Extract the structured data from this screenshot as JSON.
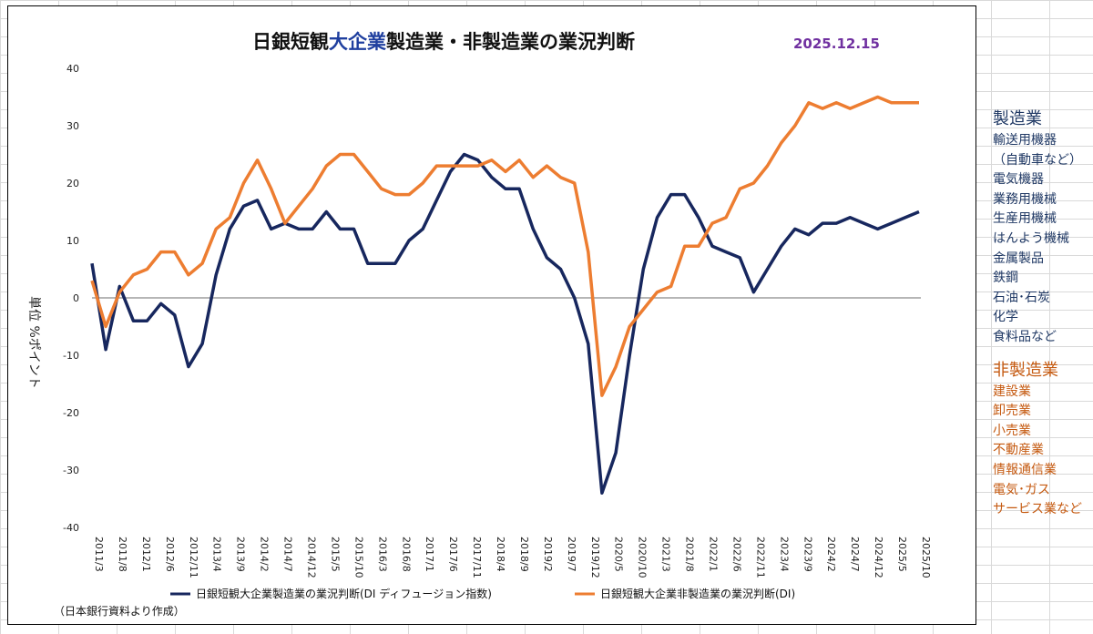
{
  "title_parts": [
    "日銀短観",
    "大企業",
    "製造業・非製造業の業況判断"
  ],
  "date": "2025.12.15",
  "y_axis_label": "単位 %ポイント",
  "source_note": "（日本銀行資料より作成）",
  "side_notes": {
    "manufacturing": {
      "heading": "製造業",
      "items": [
        "輸送用機器",
        "（自動車など）",
        "電気機器",
        "業務用機械",
        "生産用機械",
        "はんよう機械",
        "金属製品",
        "鉄鋼",
        "石油･石炭",
        "化学",
        "食料品など"
      ]
    },
    "non_manufacturing": {
      "heading": "非製造業",
      "items": [
        "建設業",
        "卸売業",
        "小売業",
        "不動産業",
        "情報通信業",
        "電気･ガス",
        "サービス業など"
      ]
    }
  },
  "colors": {
    "manufacturing": "#17275e",
    "non_manufacturing": "#ed7d31",
    "zero_line": "#9e9e9e"
  },
  "chart_data": {
    "type": "line",
    "title": "日銀短観大企業製造業・非製造業の業況判断",
    "ylabel": "単位 %ポイント",
    "ylim": [
      -40,
      40
    ],
    "yticks": [
      40,
      30,
      20,
      10,
      0,
      -10,
      -20,
      -30,
      -40
    ],
    "grid": false,
    "legend_position": "bottom",
    "x_tick_labels": [
      "2011/3",
      "2011/8",
      "2012/1",
      "2012/6",
      "2012/11",
      "2013/4",
      "2013/9",
      "2014/2",
      "2014/7",
      "2014/12",
      "2015/5",
      "2015/10",
      "2016/3",
      "2016/8",
      "2017/1",
      "2017/6",
      "2017/11",
      "2018/4",
      "2018/9",
      "2019/2",
      "2019/7",
      "2019/12",
      "2020/5",
      "2020/10",
      "2021/3",
      "2021/8",
      "2022/1",
      "2022/6",
      "2022/11",
      "2023/4",
      "2023/9",
      "2024/2",
      "2024/7",
      "2024/12",
      "2025/5",
      "2025/10"
    ],
    "series": [
      {
        "name": "日銀短観大企業製造業の業況判断(DI ディフュージョン指数)",
        "values": [
          6,
          -9,
          2,
          -4,
          -4,
          -1,
          -3,
          -12,
          -8,
          4,
          12,
          16,
          17,
          12,
          13,
          12,
          12,
          15,
          12,
          12,
          6,
          6,
          6,
          10,
          12,
          17,
          22,
          25,
          24,
          21,
          19,
          19,
          12,
          7,
          5,
          0,
          -8,
          -34,
          -27,
          -10,
          5,
          14,
          18,
          18,
          14,
          9,
          8,
          7,
          1,
          5,
          9,
          12,
          11,
          13,
          13,
          14,
          13,
          12,
          13,
          14,
          15
        ]
      },
      {
        "name": "日銀短観大企業非製造業の業況判断(DI)",
        "values": [
          3,
          -5,
          1,
          4,
          5,
          8,
          8,
          4,
          6,
          12,
          14,
          20,
          24,
          19,
          13,
          16,
          19,
          23,
          25,
          25,
          22,
          19,
          18,
          18,
          20,
          23,
          23,
          23,
          23,
          24,
          22,
          24,
          21,
          23,
          21,
          20,
          8,
          -17,
          -12,
          -5,
          -2,
          1,
          2,
          9,
          9,
          13,
          14,
          19,
          20,
          23,
          27,
          30,
          34,
          33,
          34,
          33,
          34,
          35,
          34,
          34,
          34
        ]
      }
    ]
  }
}
